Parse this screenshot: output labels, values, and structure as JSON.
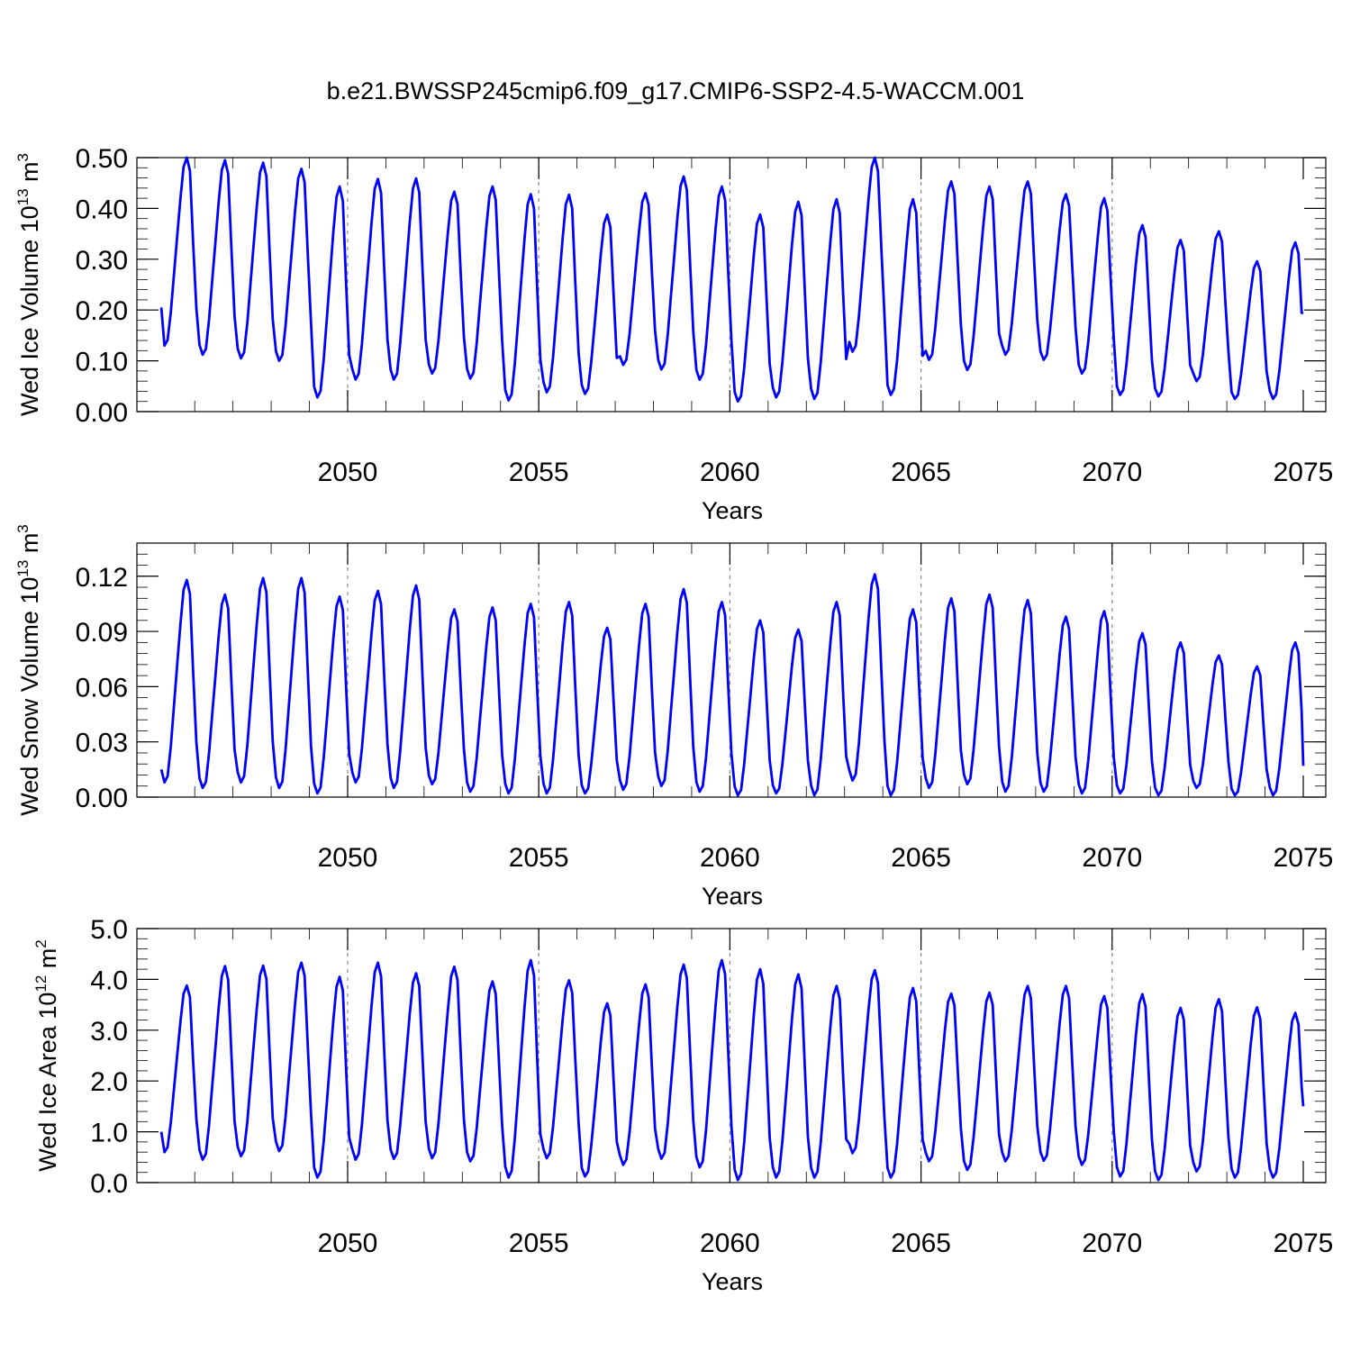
{
  "title": "b.e21.BWSSP245cmip6.f09_g17.CMIP6-SSP2-4.5-WACCM.001",
  "colors": {
    "line": "#0000ff",
    "grid": "#8a8a8a",
    "axes": "#000000"
  },
  "chart_data": [
    {
      "type": "line",
      "ylabel": {
        "prefix": "Wed Ice Volume 10",
        "exponent": "13",
        "unit": " m",
        "unit_exponent": "3"
      },
      "xlabel": "Years",
      "xlim": [
        2045.1,
        2075.0
      ],
      "ylim": [
        0,
        0.5
      ],
      "yticks": [
        "0.00",
        "0.10",
        "0.20",
        "0.30",
        "0.40",
        "0.50"
      ],
      "xticks": [
        "2050",
        "2055",
        "2060",
        "2065",
        "2070",
        "2075"
      ],
      "grid": "vertical dashed at 5-year ticks",
      "start_year": 2045.125,
      "series": [
        {
          "annual_max": [
            0.5,
            0.495,
            0.49,
            0.478,
            0.443,
            0.458,
            0.459,
            0.433,
            0.443,
            0.428,
            0.427,
            0.388,
            0.43,
            0.463,
            0.443,
            0.388,
            0.413,
            0.418,
            0.5,
            0.418,
            0.453,
            0.443,
            0.453,
            0.428,
            0.42,
            0.367,
            0.338,
            0.355,
            0.296,
            0.333
          ],
          "annual_min": [
            0.13,
            0.112,
            0.105,
            0.1,
            0.028,
            0.063,
            0.063,
            0.075,
            0.065,
            0.022,
            0.038,
            0.035,
            0.092,
            0.083,
            0.063,
            0.02,
            0.028,
            0.025,
            0.118,
            0.033,
            0.102,
            0.082,
            0.112,
            0.102,
            0.075,
            0.033,
            0.03,
            0.06,
            0.025,
            0.025
          ],
          "start_value": 0.205,
          "end_value": 0.195
        }
      ]
    },
    {
      "type": "line",
      "ylabel": {
        "prefix": "Wed Snow Volume 10",
        "exponent": "13",
        "unit": " m",
        "unit_exponent": "3"
      },
      "xlabel": "Years",
      "xlim": [
        2045.1,
        2075.0
      ],
      "ylim": [
        0,
        0.138
      ],
      "yticks": [
        "0.00",
        "0.03",
        "0.06",
        "0.09",
        "0.12"
      ],
      "xticks": [
        "2050",
        "2055",
        "2060",
        "2065",
        "2070",
        "2075"
      ],
      "grid": "vertical dashed at 5-year ticks",
      "start_year": 2045.125,
      "series": [
        {
          "annual_max": [
            0.118,
            0.11,
            0.119,
            0.119,
            0.109,
            0.112,
            0.115,
            0.102,
            0.103,
            0.105,
            0.106,
            0.092,
            0.105,
            0.113,
            0.106,
            0.096,
            0.091,
            0.106,
            0.121,
            0.102,
            0.108,
            0.11,
            0.107,
            0.098,
            0.101,
            0.089,
            0.084,
            0.077,
            0.071,
            0.084
          ],
          "annual_min": [
            0.008,
            0.005,
            0.008,
            0.005,
            0.002,
            0.008,
            0.005,
            0.007,
            0.003,
            0.002,
            0.002,
            0.002,
            0.004,
            0.006,
            0.003,
            0.001,
            0.002,
            0.001,
            0.009,
            0.001,
            0.005,
            0.007,
            0.003,
            0.003,
            0.002,
            0.002,
            0.001,
            0.005,
            0.001,
            0.001
          ],
          "start_value": 0.015,
          "end_value": 0.017
        }
      ]
    },
    {
      "type": "line",
      "ylabel": {
        "prefix": "Wed Ice Area 10",
        "exponent": "12",
        "unit": " m",
        "unit_exponent": "2"
      },
      "xlabel": "Years",
      "xlim": [
        2045.1,
        2075.0
      ],
      "ylim": [
        0,
        5.0
      ],
      "yticks": [
        "0.0",
        "1.0",
        "2.0",
        "3.0",
        "4.0",
        "5.0"
      ],
      "xticks": [
        "2050",
        "2055",
        "2060",
        "2065",
        "2070",
        "2075"
      ],
      "grid": "vertical dashed at 5-year ticks",
      "start_year": 2045.125,
      "series": [
        {
          "annual_max": [
            3.88,
            4.26,
            4.27,
            4.33,
            4.05,
            4.33,
            4.12,
            4.25,
            3.96,
            4.38,
            3.98,
            3.53,
            3.9,
            4.29,
            4.38,
            4.2,
            4.1,
            3.87,
            4.18,
            3.83,
            3.72,
            3.74,
            3.87,
            3.87,
            3.67,
            3.71,
            3.44,
            3.61,
            3.45,
            3.34
          ],
          "annual_min": [
            0.6,
            0.45,
            0.52,
            0.62,
            0.1,
            0.45,
            0.47,
            0.48,
            0.42,
            0.1,
            0.48,
            0.12,
            0.35,
            0.47,
            0.3,
            0.05,
            0.1,
            0.1,
            0.58,
            0.1,
            0.42,
            0.25,
            0.42,
            0.43,
            0.35,
            0.12,
            0.05,
            0.22,
            0.1,
            0.1
          ],
          "start_value": 1.0,
          "end_value": 1.5
        }
      ]
    }
  ]
}
